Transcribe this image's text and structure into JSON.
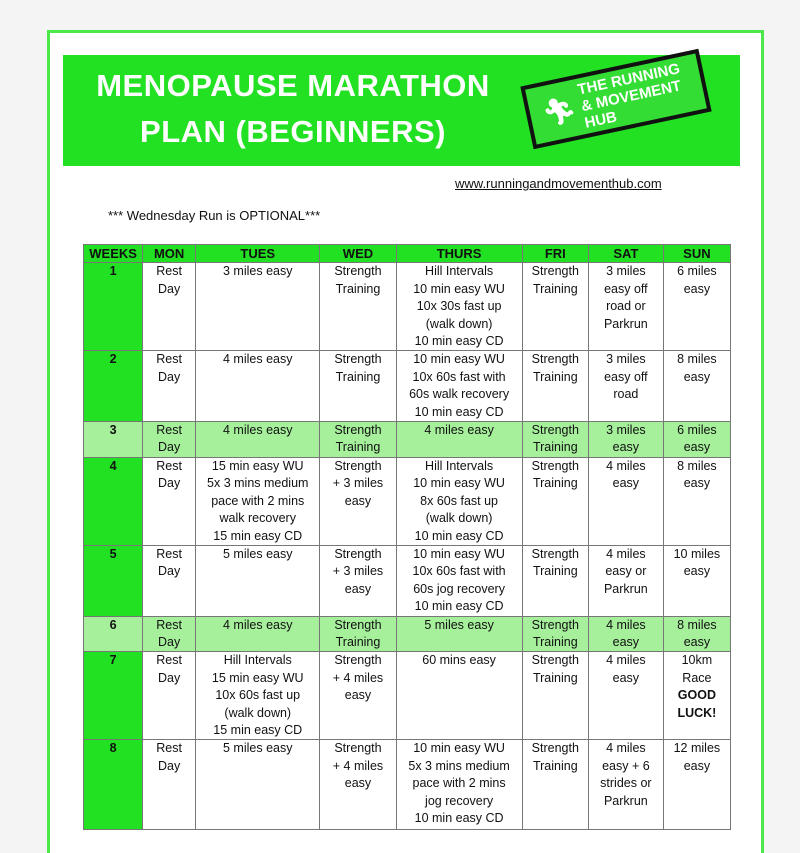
{
  "header": {
    "title_line1": "MENOPAUSE MARATHON",
    "title_line2": "PLAN (BEGINNERS)",
    "logo_text": "THE RUNNING & MOVEMENT HUB",
    "url": "www.runningandmovementhub.com",
    "note": "*** Wednesday Run is OPTIONAL***"
  },
  "colors": {
    "banner": "#22e022",
    "light_row": "#a6f09c"
  },
  "table": {
    "headers": [
      "WEEKS",
      "MON",
      "TUES",
      "WED",
      "THURS",
      "FRI",
      "SAT",
      "SUN"
    ],
    "rows": [
      {
        "week": "1",
        "mon": "Rest\nDay",
        "tues": "3 miles easy",
        "wed": "Strength\nTraining",
        "thurs": "Hill Intervals\n10 min easy WU\n10x 30s fast up\n(walk down)\n10 min easy CD",
        "fri": "Strength\nTraining",
        "sat": "3 miles\neasy off\nroad or\nParkrun",
        "sun": "6 miles\neasy",
        "sun_bold": ""
      },
      {
        "week": "2",
        "mon": "Rest\nDay",
        "tues": "4 miles easy",
        "wed": "Strength\nTraining",
        "thurs": "10 min easy WU\n10x 60s fast with\n60s walk recovery\n10 min easy CD",
        "fri": "Strength\nTraining",
        "sat": "3 miles\neasy off\nroad",
        "sun": "8 miles\neasy",
        "sun_bold": ""
      },
      {
        "week": "3",
        "mon": "Rest\nDay",
        "tues": "4 miles easy",
        "wed": "Strength\nTraining",
        "thurs": "4 miles easy",
        "fri": "Strength\nTraining",
        "sat": "3 miles\neasy",
        "sun": "6 miles\neasy",
        "sun_bold": "",
        "light": true
      },
      {
        "week": "4",
        "mon": "Rest\nDay",
        "tues": "15 min easy WU\n5x 3 mins medium\npace with 2 mins\nwalk recovery\n15 min easy CD",
        "wed": "Strength\n+ 3 miles\neasy",
        "thurs": "Hill Intervals\n10 min easy WU\n8x 60s fast up\n(walk down)\n10 min easy CD",
        "fri": "Strength\nTraining",
        "sat": "4 miles\neasy",
        "sun": "8 miles\neasy",
        "sun_bold": ""
      },
      {
        "week": "5",
        "mon": "Rest\nDay",
        "tues": "5 miles easy",
        "wed": "Strength\n+ 3 miles\neasy",
        "thurs": "10 min easy WU\n10x 60s fast with\n60s jog recovery\n10 min easy CD",
        "fri": "Strength\nTraining",
        "sat": "4 miles\neasy or\nParkrun",
        "sun": "10 miles\neasy",
        "sun_bold": ""
      },
      {
        "week": "6",
        "mon": "Rest\nDay",
        "tues": "4 miles easy",
        "wed": "Strength\nTraining",
        "thurs": "5 miles easy",
        "fri": "Strength\nTraining",
        "sat": "4 miles\neasy",
        "sun": "8 miles\neasy",
        "sun_bold": "",
        "light": true
      },
      {
        "week": "7",
        "mon": "Rest\nDay",
        "tues": "Hill Intervals\n15 min easy WU\n10x 60s fast up\n(walk down)\n15 min easy CD",
        "wed": "Strength\n+ 4 miles\neasy",
        "thurs": "60 mins easy",
        "fri": "Strength\nTraining",
        "sat": "4 miles\neasy",
        "sun": "10km\nRace",
        "sun_bold": "GOOD\nLUCK!"
      },
      {
        "week": "8",
        "mon": "Rest\nDay",
        "tues": "5 miles easy",
        "wed": "Strength\n+ 4 miles\neasy",
        "thurs": "10 min easy WU\n5x 3 mins medium\npace with 2 mins\njog recovery\n10 min easy CD",
        "fri": "Strength\nTraining",
        "sat": "4 miles\neasy + 6\nstrides or\nParkrun",
        "sun": "12 miles\neasy",
        "sun_bold": ""
      }
    ]
  }
}
